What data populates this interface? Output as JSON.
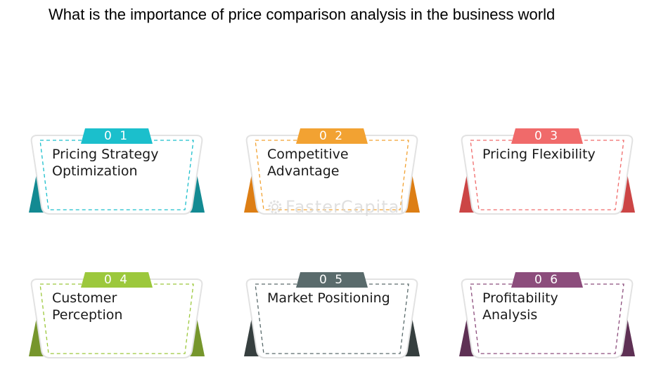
{
  "title": "What is the importance of price comparison analysis in the business world",
  "watermark": "FasterCapital",
  "cards": [
    {
      "number": "0 1",
      "lines": [
        "Pricing Strategy",
        "Optimization"
      ],
      "color": "#1bbfcc",
      "dark": "#138a92"
    },
    {
      "number": "0 2",
      "lines": [
        "Competitive",
        "Advantage"
      ],
      "color": "#f2a232",
      "dark": "#dd7e14"
    },
    {
      "number": "0 3",
      "lines": [
        "Pricing Flexibility",
        ""
      ],
      "color": "#f06a6a",
      "dark": "#cc4545"
    },
    {
      "number": "0 4",
      "lines": [
        "Customer",
        "Perception"
      ],
      "color": "#9cc83c",
      "dark": "#76962c"
    },
    {
      "number": "0 5",
      "lines": [
        "Market Positioning",
        ""
      ],
      "color": "#5a6b6c",
      "dark": "#363f3f"
    },
    {
      "number": "0 6",
      "lines": [
        "Profitability",
        "Analysis"
      ],
      "color": "#8c4d7c",
      "dark": "#5e3054"
    }
  ]
}
